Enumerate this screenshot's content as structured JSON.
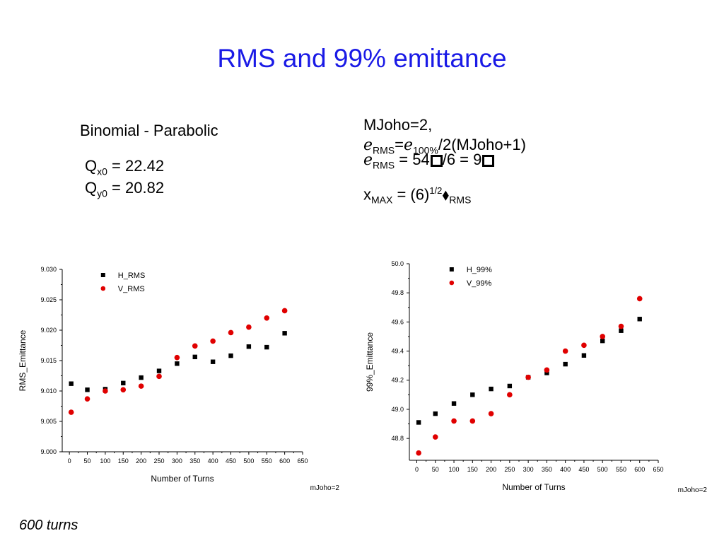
{
  "title": "RMS and 99% emittance",
  "subtitle": "Binomial - Parabolic",
  "tunes": {
    "qx": {
      "base": "Q",
      "sub": "x0",
      "value": " = 22.42"
    },
    "qy": {
      "base": "Q",
      "sub": "y0",
      "value": " = 20.82"
    }
  },
  "equations": {
    "line1": "MJoho=2,",
    "line2": {
      "a": "ℯ",
      "a_sub": "RMS",
      "b": "=ℯ",
      "b_sub": "100%",
      "c": "/2(MJoho+1)"
    },
    "line3": {
      "a": "ℯ",
      "a_sub": "RMS",
      "b": " = 54",
      "c": "/6 = 9"
    },
    "line4": {
      "a": "x",
      "a_sub": "MAX",
      "b": " = (6)",
      "b_sup": "1/2",
      "c": "⬧",
      "c_sub": "RMS"
    }
  },
  "footnote": "600 turns",
  "colors": {
    "title": "#1a1ae6",
    "h_series": "#000000",
    "v_series": "#e00000"
  },
  "chart_data": [
    {
      "type": "scatter",
      "xlabel": "Number of Turns",
      "ylabel": "RMS_Emittance",
      "note": "mJoho=2",
      "xlim": [
        -20,
        650
      ],
      "ylim": [
        9.0,
        9.03
      ],
      "xticks": [
        0,
        50,
        100,
        150,
        200,
        250,
        300,
        350,
        400,
        450,
        500,
        550,
        600,
        650
      ],
      "xtick_labels": [
        "0",
        "50",
        "100",
        "150",
        "200",
        "250",
        "300",
        "350",
        "400",
        "450",
        "500",
        "550",
        "600",
        "650"
      ],
      "yticks": [
        9.0,
        9.005,
        9.01,
        9.015,
        9.02,
        9.025,
        9.03
      ],
      "ytick_labels": [
        "9.000",
        "9.005",
        "9.010",
        "9.015",
        "9.020",
        "9.025",
        "9.030"
      ],
      "legend_position": "top-center",
      "x": [
        5,
        50,
        100,
        150,
        200,
        250,
        300,
        350,
        400,
        450,
        500,
        550,
        600
      ],
      "series": [
        {
          "name": "H_RMS",
          "marker": "square",
          "color": "#000000",
          "values": [
            9.0112,
            9.0102,
            9.0103,
            9.0113,
            9.0122,
            9.0133,
            9.0145,
            9.0156,
            9.0148,
            9.0158,
            9.0173,
            9.0172,
            9.0195
          ]
        },
        {
          "name": "V_RMS",
          "marker": "circle",
          "color": "#e00000",
          "values": [
            9.0065,
            9.0087,
            9.01,
            9.0102,
            9.0108,
            9.0124,
            9.0155,
            9.0174,
            9.0182,
            9.0196,
            9.0205,
            9.022,
            9.0232
          ]
        }
      ]
    },
    {
      "type": "scatter",
      "xlabel": "Number of Turns",
      "ylabel": "99%_Emittance",
      "note": "mJoho=2",
      "xlim": [
        -20,
        650
      ],
      "ylim": [
        48.65,
        50.0
      ],
      "xticks": [
        0,
        50,
        100,
        150,
        200,
        250,
        300,
        350,
        400,
        450,
        500,
        550,
        600,
        650
      ],
      "xtick_labels": [
        "0",
        "50",
        "100",
        "150",
        "200",
        "250",
        "300",
        "350",
        "400",
        "450",
        "500",
        "550",
        "600",
        "650"
      ],
      "yticks": [
        48.8,
        49.0,
        49.2,
        49.4,
        49.6,
        49.8,
        50.0
      ],
      "ytick_labels": [
        "48.8",
        "49.0",
        "49.2",
        "49.4",
        "49.6",
        "49.8",
        "50.0"
      ],
      "legend_position": "top-center",
      "x": [
        5,
        50,
        100,
        150,
        200,
        250,
        300,
        350,
        400,
        450,
        500,
        550,
        600
      ],
      "series": [
        {
          "name": "H_99%",
          "marker": "square",
          "color": "#000000",
          "values": [
            48.91,
            48.97,
            49.04,
            49.1,
            49.14,
            49.16,
            49.22,
            49.25,
            49.31,
            49.37,
            49.47,
            49.54,
            49.62
          ]
        },
        {
          "name": "V_99%",
          "marker": "circle",
          "color": "#e00000",
          "values": [
            48.7,
            48.81,
            48.92,
            48.92,
            48.97,
            49.1,
            49.22,
            49.27,
            49.4,
            49.44,
            49.5,
            49.57,
            49.76
          ]
        }
      ]
    }
  ]
}
